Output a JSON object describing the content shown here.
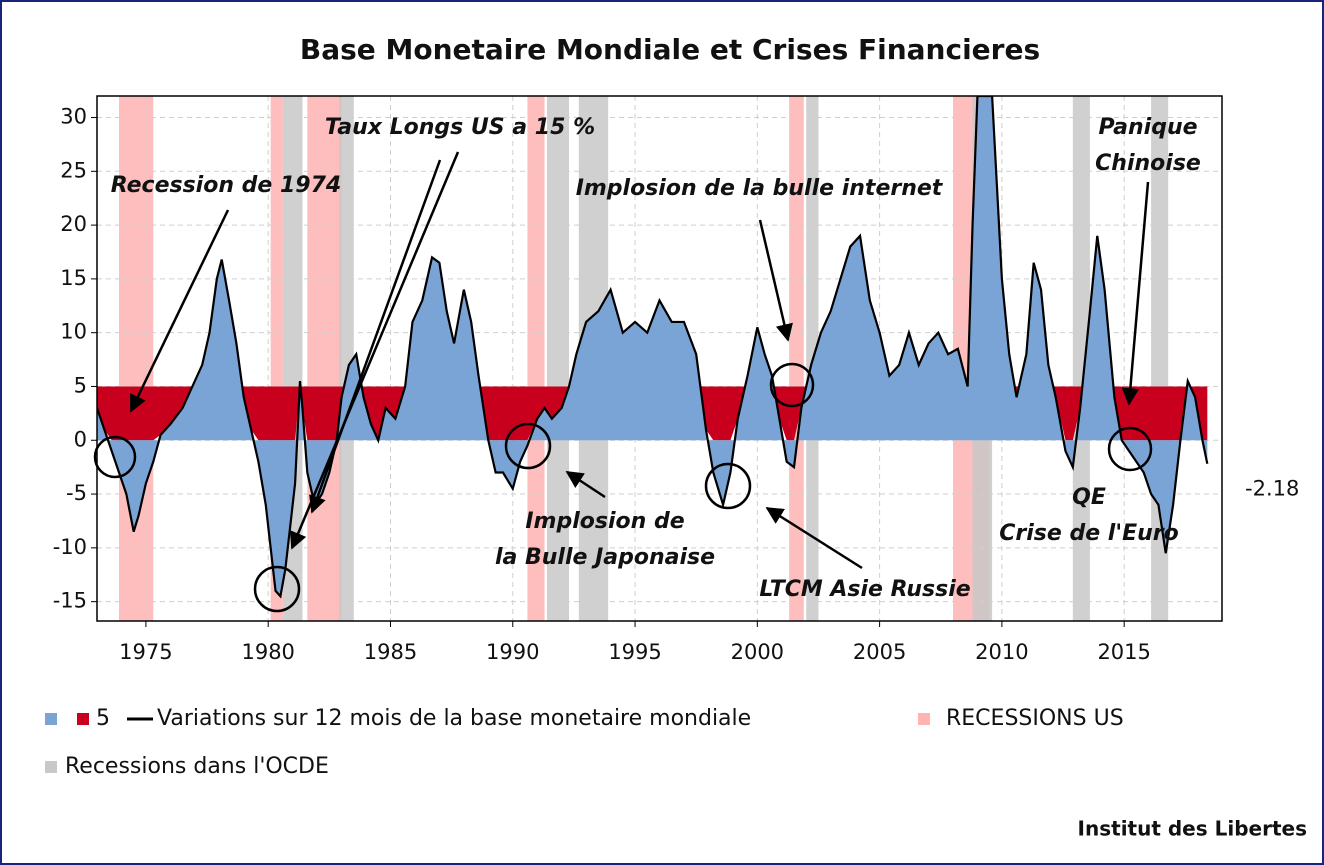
{
  "chart_data": {
    "type": "area",
    "title": "Base Monetaire Mondiale et Crises Financieres",
    "source": "Institut des Libertes",
    "xlim": [
      1973,
      2019
    ],
    "xticks": [
      1975,
      1980,
      1985,
      1990,
      1995,
      2000,
      2005,
      2010,
      2015
    ],
    "ylim": [
      -16.8,
      32
    ],
    "yticks": [
      -15,
      -10,
      -5,
      0,
      5,
      10,
      15,
      20,
      25,
      30
    ],
    "grid": true,
    "threshold": 5,
    "threshold_color": "#c8001e",
    "x": [
      1973.0,
      1973.3,
      1973.6,
      1973.9,
      1974.2,
      1974.5,
      1974.7,
      1975.0,
      1975.3,
      1975.6,
      1976.0,
      1976.5,
      1977.0,
      1977.3,
      1977.6,
      1977.9,
      1978.1,
      1978.4,
      1978.7,
      1979.0,
      1979.3,
      1979.6,
      1979.9,
      1980.1,
      1980.3,
      1980.5,
      1980.7,
      1980.9,
      1981.1,
      1981.3,
      1981.4,
      1981.6,
      1981.9,
      1982.2,
      1982.5,
      1982.8,
      1983.0,
      1983.3,
      1983.6,
      1983.9,
      1984.2,
      1984.5,
      1984.8,
      1985.2,
      1985.6,
      1985.9,
      1986.3,
      1986.7,
      1987.0,
      1987.3,
      1987.6,
      1988.0,
      1988.3,
      1988.6,
      1989.0,
      1989.3,
      1989.6,
      1990.0,
      1990.3,
      1990.6,
      1991.0,
      1991.3,
      1991.6,
      1992.0,
      1992.3,
      1992.6,
      1993.0,
      1993.5,
      1994.0,
      1994.5,
      1995.0,
      1995.5,
      1996.0,
      1996.5,
      1997.0,
      1997.5,
      1997.9,
      1998.2,
      1998.6,
      1998.9,
      1999.2,
      1999.6,
      2000.0,
      2000.3,
      2000.6,
      2000.9,
      2001.2,
      2001.5,
      2001.8,
      2002.2,
      2002.6,
      2003.0,
      2003.4,
      2003.8,
      2004.2,
      2004.6,
      2005.0,
      2005.4,
      2005.8,
      2006.2,
      2006.6,
      2007.0,
      2007.4,
      2007.8,
      2008.2,
      2008.6,
      2008.8,
      2009.0,
      2009.6,
      2010.0,
      2010.3,
      2010.6,
      2011.0,
      2011.3,
      2011.6,
      2011.9,
      2012.2,
      2012.6,
      2012.9,
      2013.2,
      2013.6,
      2013.9,
      2014.2,
      2014.6,
      2014.9,
      2015.2,
      2015.5,
      2015.8,
      2016.1,
      2016.4,
      2016.7,
      2017.0,
      2017.3,
      2017.6,
      2017.9,
      2018.2,
      2018.4
    ],
    "series": [
      {
        "name": "Variations sur 12 mois de la base monetaire mondiale",
        "color": "#000000",
        "fill": "#7ba4d6",
        "values": [
          3,
          1,
          -1,
          -3,
          -5,
          -8.5,
          -7,
          -4,
          -2,
          0.5,
          1.5,
          3,
          5.5,
          7,
          10,
          15,
          16.8,
          13,
          9,
          4,
          1,
          -2,
          -6,
          -10,
          -14,
          -14.5,
          -12,
          -8,
          -4,
          5.5,
          3,
          -3,
          -6,
          -5,
          -3,
          0,
          4,
          7,
          8,
          4,
          1.5,
          0,
          3,
          2,
          5,
          11,
          13,
          17,
          16.5,
          12,
          9,
          14,
          11,
          6,
          0,
          -3,
          -3,
          -4.5,
          -2,
          -0.5,
          2,
          3,
          2,
          3,
          5,
          8,
          11,
          12,
          14,
          10,
          11,
          10,
          13,
          11,
          11,
          8,
          1,
          -3,
          -6,
          -3,
          2,
          6,
          10.5,
          8,
          6,
          2,
          -2,
          -2.5,
          3,
          7,
          10,
          12,
          15,
          18,
          19,
          13,
          10,
          6,
          7,
          10,
          7,
          9,
          10,
          8,
          8.5,
          5,
          20,
          32,
          32,
          15,
          8,
          4,
          8,
          16.5,
          14,
          7,
          4,
          -1,
          -2.5,
          3,
          12,
          19,
          14,
          4,
          0,
          -1,
          -2,
          -3,
          -5,
          -6,
          -10.5,
          -6,
          0,
          5.5,
          4,
          0,
          -2.18
        ]
      }
    ],
    "end_label": -2.18,
    "recessions": [
      {
        "name": "RECESSIONS US",
        "color": "#ffb3b3",
        "spans": [
          [
            1973.9,
            1975.3
          ],
          [
            1980.1,
            1980.6
          ],
          [
            1981.6,
            1983.0
          ],
          [
            1990.6,
            1991.3
          ],
          [
            2001.3,
            2001.9
          ],
          [
            2008.0,
            2009.5
          ]
        ]
      },
      {
        "name": "Recessions dans l'OCDE",
        "color": "#c8c8c8",
        "spans": [
          [
            1980.6,
            1981.4
          ],
          [
            1982.9,
            1983.5
          ],
          [
            1991.4,
            1992.3
          ],
          [
            1992.7,
            1993.9
          ],
          [
            2002.0,
            2002.5
          ],
          [
            2008.8,
            2009.6
          ],
          [
            2012.9,
            2013.6
          ],
          [
            2016.1,
            2016.8
          ]
        ]
      }
    ],
    "annotations": [
      [
        "Recession de 1974"
      ],
      [
        "Taux Longs US a 15 %"
      ],
      [
        "Implosion de la bulle internet"
      ],
      [
        "Panique",
        "Chinoise"
      ],
      [
        "Implosion de",
        "la Bulle Japonaise"
      ],
      [
        "LTCM Asie Russie"
      ],
      [
        "QE",
        "Crise de l'Euro"
      ]
    ]
  }
}
